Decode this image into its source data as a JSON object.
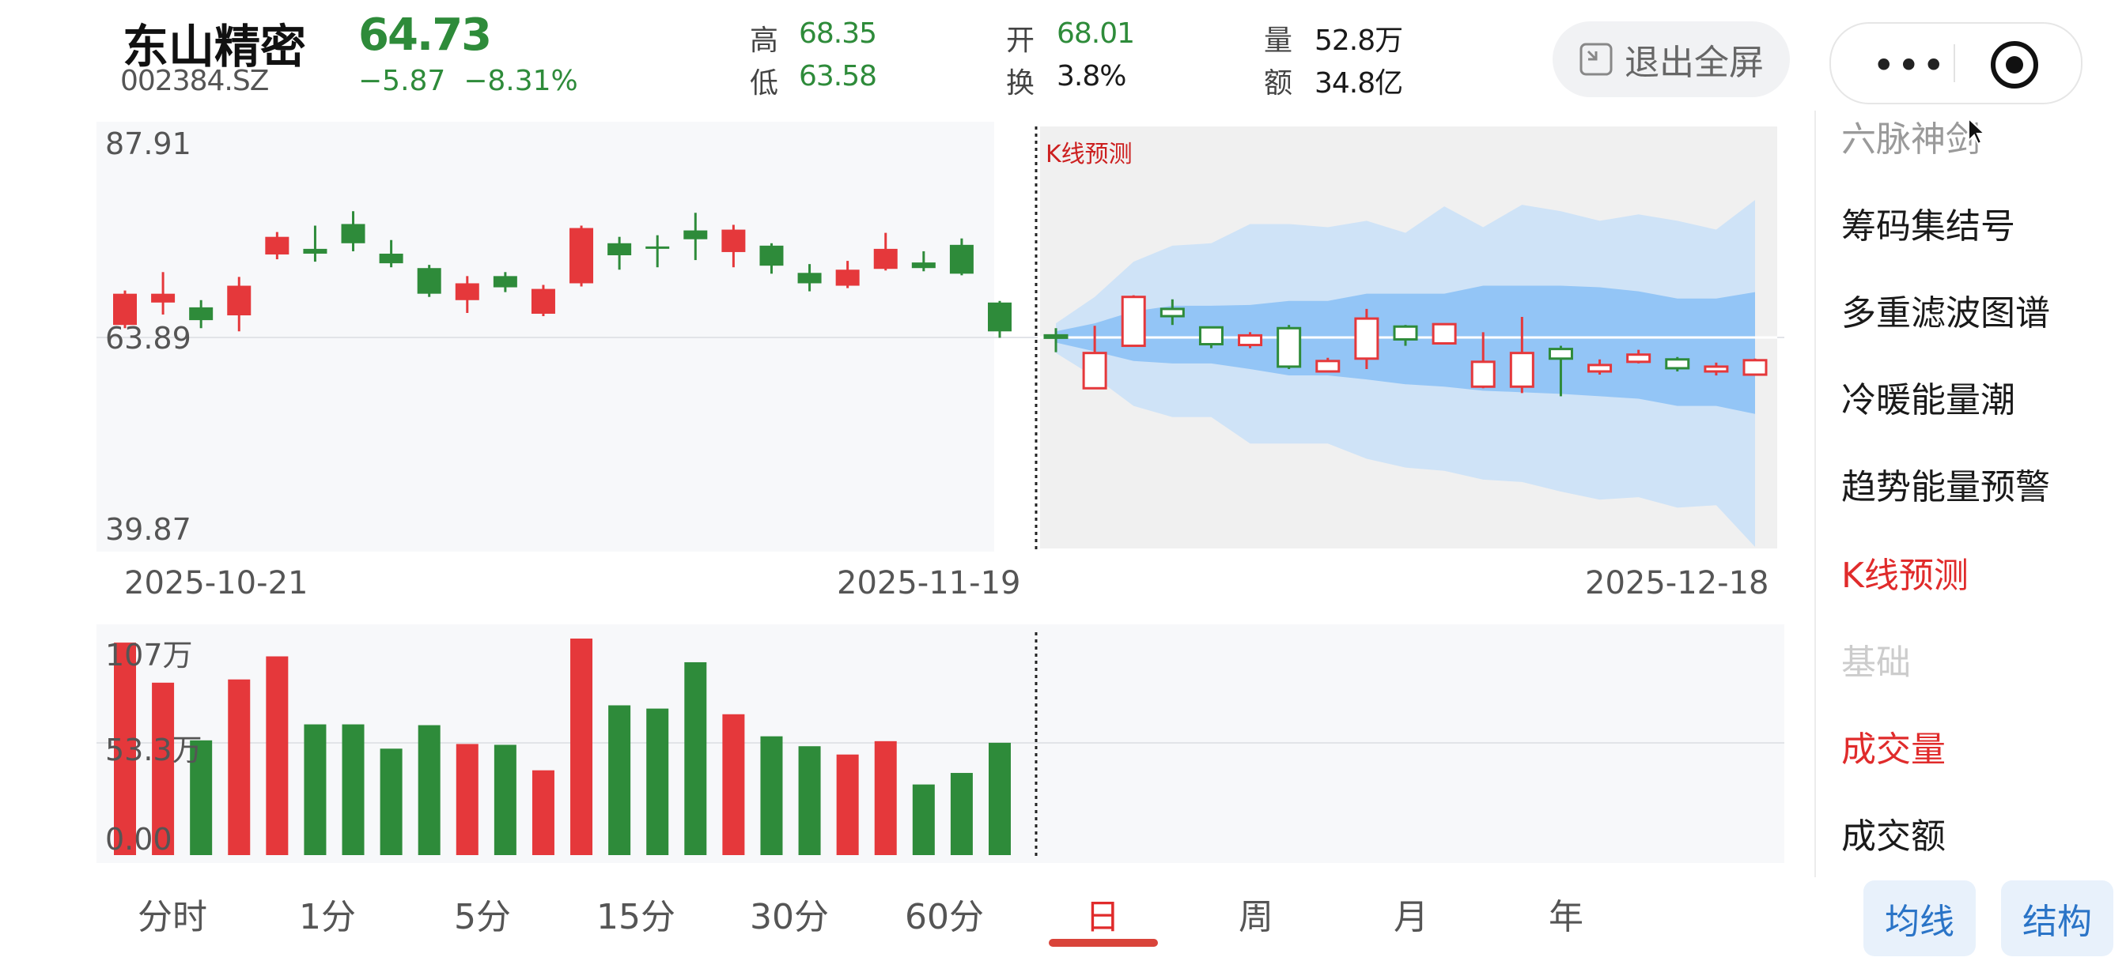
{
  "header": {
    "name": "东山精密",
    "code": "002384.SZ",
    "price": "64.73",
    "change": "−5.87",
    "change_pct": "−8.31%",
    "stats": [
      {
        "key": "高",
        "value": "68.35",
        "tone": "green"
      },
      {
        "key": "低",
        "value": "63.58",
        "tone": "green"
      },
      {
        "key": "开",
        "value": "68.01",
        "tone": "green"
      },
      {
        "key": "换",
        "value": "3.8%",
        "tone": "dark"
      },
      {
        "key": "量",
        "value": "52.8万",
        "tone": "dark"
      },
      {
        "key": "额",
        "value": "34.8亿",
        "tone": "dark"
      }
    ],
    "exit_fullscreen": "退出全屏"
  },
  "chart": {
    "forecast_label": "K线预测",
    "y_top": "87.91",
    "y_mid": "63.89",
    "y_bottom": "39.87",
    "dates": [
      "2025-10-21",
      "2025-11-19",
      "2025-12-18"
    ],
    "vol_top": "107万",
    "vol_mid": "53.3万",
    "vol_bottom": "0.00",
    "colors": {
      "up": "#e5383b",
      "down": "#2e8b3a",
      "band_outer": "#cfe3f7",
      "band_inner": "#93c5f6",
      "panel": "#f7f8fa"
    }
  },
  "chart_data": {
    "type": "candlestick",
    "ylim": [
      39.87,
      87.91
    ],
    "volume_ylim": [
      0,
      107
    ],
    "volume_unit": "万",
    "history": [
      {
        "o": 69.3,
        "c": 65.4,
        "h": 69.7,
        "l": 65.0,
        "dir": "up"
      },
      {
        "o": 68.2,
        "c": 69.3,
        "h": 72.0,
        "l": 66.7,
        "dir": "up"
      },
      {
        "o": 66.0,
        "c": 67.6,
        "h": 68.5,
        "l": 65.0,
        "dir": "down"
      },
      {
        "o": 70.3,
        "c": 66.6,
        "h": 71.4,
        "l": 64.6,
        "dir": "up"
      },
      {
        "o": 76.4,
        "c": 74.2,
        "h": 77.0,
        "l": 73.6,
        "dir": "up"
      },
      {
        "o": 74.9,
        "c": 74.3,
        "h": 77.8,
        "l": 73.3,
        "dir": "down"
      },
      {
        "o": 78.0,
        "c": 75.6,
        "h": 79.6,
        "l": 74.6,
        "dir": "down"
      },
      {
        "o": 74.3,
        "c": 73.1,
        "h": 76.0,
        "l": 72.6,
        "dir": "down"
      },
      {
        "o": 72.5,
        "c": 69.3,
        "h": 72.9,
        "l": 68.9,
        "dir": "down"
      },
      {
        "o": 70.6,
        "c": 68.5,
        "h": 71.5,
        "l": 66.9,
        "dir": "up"
      },
      {
        "o": 71.5,
        "c": 70.1,
        "h": 72.0,
        "l": 69.5,
        "dir": "down"
      },
      {
        "o": 69.9,
        "c": 66.8,
        "h": 70.4,
        "l": 66.5,
        "dir": "up"
      },
      {
        "o": 77.5,
        "c": 70.6,
        "h": 77.8,
        "l": 70.2,
        "dir": "up"
      },
      {
        "o": 75.6,
        "c": 74.1,
        "h": 76.4,
        "l": 72.3,
        "dir": "down"
      },
      {
        "o": 75.2,
        "c": 75.0,
        "h": 76.6,
        "l": 72.6,
        "dir": "down"
      },
      {
        "o": 77.2,
        "c": 76.1,
        "h": 79.4,
        "l": 73.5,
        "dir": "down"
      },
      {
        "o": 77.3,
        "c": 74.5,
        "h": 77.9,
        "l": 72.6,
        "dir": "up"
      },
      {
        "o": 75.3,
        "c": 72.8,
        "h": 75.6,
        "l": 71.8,
        "dir": "down"
      },
      {
        "o": 71.9,
        "c": 70.6,
        "h": 73.0,
        "l": 69.6,
        "dir": "down"
      },
      {
        "o": 72.3,
        "c": 70.3,
        "h": 73.4,
        "l": 70.0,
        "dir": "up"
      },
      {
        "o": 74.9,
        "c": 72.4,
        "h": 76.9,
        "l": 72.2,
        "dir": "up"
      },
      {
        "o": 73.2,
        "c": 72.5,
        "h": 74.6,
        "l": 72.1,
        "dir": "down"
      },
      {
        "o": 75.4,
        "c": 71.8,
        "h": 76.2,
        "l": 71.6,
        "dir": "down"
      },
      {
        "o": 68.2,
        "c": 64.6,
        "h": 68.4,
        "l": 63.8,
        "dir": "down"
      }
    ],
    "forecast": [
      {
        "o": 64.1,
        "c": 64.1,
        "h": 65.0,
        "l": 62.0,
        "dir": "down"
      },
      {
        "o": 61.9,
        "c": 57.5,
        "h": 65.3,
        "l": 57.5,
        "dir": "up"
      },
      {
        "o": 68.9,
        "c": 62.8,
        "h": 69.1,
        "l": 62.8,
        "dir": "up"
      },
      {
        "o": 67.4,
        "c": 66.5,
        "h": 68.6,
        "l": 65.4,
        "dir": "down"
      },
      {
        "o": 65.1,
        "c": 63.0,
        "h": 65.2,
        "l": 62.5,
        "dir": "down"
      },
      {
        "o": 64.1,
        "c": 62.9,
        "h": 64.5,
        "l": 62.5,
        "dir": "up"
      },
      {
        "o": 65.0,
        "c": 60.2,
        "h": 65.4,
        "l": 59.9,
        "dir": "down"
      },
      {
        "o": 60.9,
        "c": 59.6,
        "h": 61.3,
        "l": 59.5,
        "dir": "up"
      },
      {
        "o": 66.2,
        "c": 61.2,
        "h": 67.4,
        "l": 59.9,
        "dir": "up"
      },
      {
        "o": 65.2,
        "c": 63.6,
        "h": 65.4,
        "l": 62.8,
        "dir": "down"
      },
      {
        "o": 65.5,
        "c": 63.1,
        "h": 65.5,
        "l": 63.0,
        "dir": "up"
      },
      {
        "o": 60.8,
        "c": 57.7,
        "h": 64.5,
        "l": 57.5,
        "dir": "up"
      },
      {
        "o": 61.9,
        "c": 57.7,
        "h": 66.4,
        "l": 56.9,
        "dir": "up"
      },
      {
        "o": 62.4,
        "c": 61.2,
        "h": 62.8,
        "l": 56.5,
        "dir": "down"
      },
      {
        "o": 60.4,
        "c": 59.6,
        "h": 61.1,
        "l": 59.2,
        "dir": "up"
      },
      {
        "o": 61.7,
        "c": 60.8,
        "h": 62.3,
        "l": 60.6,
        "dir": "up"
      },
      {
        "o": 61.1,
        "c": 60.0,
        "h": 61.4,
        "l": 59.6,
        "dir": "down"
      },
      {
        "o": 60.2,
        "c": 59.6,
        "h": 60.7,
        "l": 59.1,
        "dir": "up"
      },
      {
        "o": 61.0,
        "c": 59.2,
        "h": 61.2,
        "l": 59.2,
        "dir": "up"
      }
    ],
    "band_outer_upper": [
      65.6,
      68.9,
      73.3,
      75.3,
      75.6,
      78.0,
      78.0,
      77.6,
      78.4,
      76.9,
      80.2,
      77.6,
      80.4,
      79.6,
      78.4,
      79.2,
      78.4,
      77.3,
      81.0
    ],
    "band_outer_lower": [
      61.9,
      58.9,
      55.3,
      53.9,
      53.9,
      50.6,
      50.6,
      50.6,
      48.7,
      47.6,
      47.2,
      46.1,
      45.8,
      44.6,
      43.6,
      43.9,
      42.6,
      42.9,
      37.7
    ],
    "band_inner_upper": [
      64.6,
      65.6,
      67.1,
      67.8,
      67.8,
      67.9,
      68.4,
      68.4,
      69.3,
      69.3,
      69.3,
      70.3,
      70.3,
      70.3,
      70.1,
      69.6,
      68.7,
      68.7,
      69.5
    ],
    "band_inner_lower": [
      63.2,
      62.1,
      60.9,
      60.6,
      60.6,
      59.9,
      59.1,
      59.1,
      58.6,
      58.0,
      57.7,
      57.2,
      57.0,
      56.8,
      56.5,
      56.2,
      55.3,
      55.3,
      54.3
    ],
    "volume": [
      {
        "v": 105.0,
        "dir": "up"
      },
      {
        "v": 85.2,
        "dir": "up"
      },
      {
        "v": 56.7,
        "dir": "down"
      },
      {
        "v": 86.8,
        "dir": "up"
      },
      {
        "v": 98.2,
        "dir": "up"
      },
      {
        "v": 64.6,
        "dir": "down"
      },
      {
        "v": 64.6,
        "dir": "down"
      },
      {
        "v": 52.6,
        "dir": "down"
      },
      {
        "v": 64.2,
        "dir": "down"
      },
      {
        "v": 54.9,
        "dir": "up"
      },
      {
        "v": 54.5,
        "dir": "down"
      },
      {
        "v": 41.9,
        "dir": "up"
      },
      {
        "v": 107.0,
        "dir": "up"
      },
      {
        "v": 74.0,
        "dir": "down"
      },
      {
        "v": 72.4,
        "dir": "down"
      },
      {
        "v": 95.3,
        "dir": "down"
      },
      {
        "v": 69.6,
        "dir": "up"
      },
      {
        "v": 58.7,
        "dir": "down"
      },
      {
        "v": 53.8,
        "dir": "down"
      },
      {
        "v": 49.7,
        "dir": "up"
      },
      {
        "v": 56.3,
        "dir": "up"
      },
      {
        "v": 34.9,
        "dir": "down"
      },
      {
        "v": 40.6,
        "dir": "down"
      },
      {
        "v": 55.5,
        "dir": "down"
      }
    ]
  },
  "sidebar": {
    "items": [
      "六脉神剑",
      "筹码集结号",
      "多重滤波图谱",
      "冷暖能量潮",
      "趋势能量预警",
      "K线预测",
      "基础",
      "成交量",
      "成交额"
    ]
  },
  "tabs": [
    "分时",
    "1分",
    "5分",
    "15分",
    "30分",
    "60分",
    "日",
    "周",
    "月",
    "年"
  ],
  "buttons": {
    "ma": "均线",
    "structure": "结构"
  }
}
